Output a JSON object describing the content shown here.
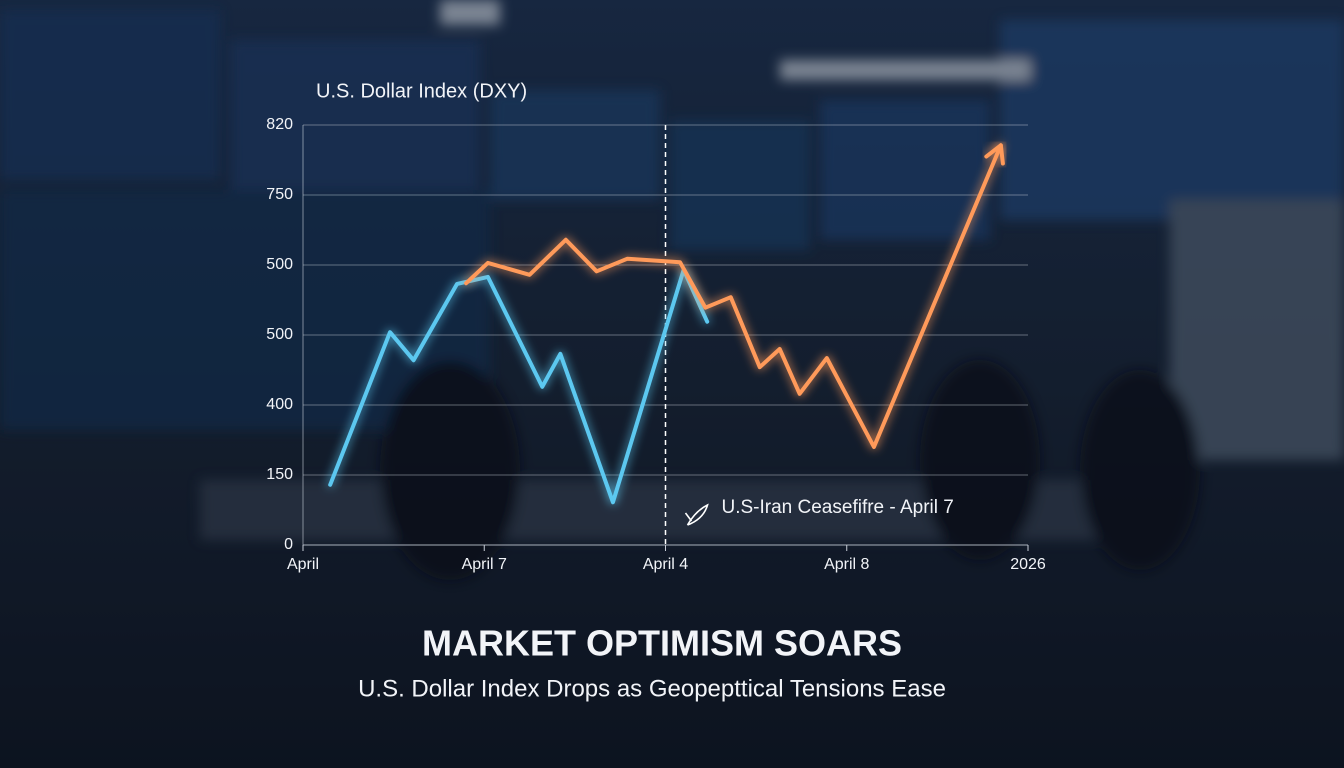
{
  "chart_data": {
    "type": "line",
    "title": "MARKET OPTIMISM SOARS",
    "subtitle": "U.S. Dollar Index Drops as Geopepttical Tensions Ease",
    "y_label": "U.S. Dollar Index (DXY)",
    "annotation": {
      "label": "U.S-Iran Ceasefifre - April 7",
      "x": 2
    },
    "xlim": [
      0,
      4
    ],
    "xticks": [
      {
        "value": 0,
        "label": "April"
      },
      {
        "value": 1,
        "label": "April 7"
      },
      {
        "value": 2,
        "label": "April 4"
      },
      {
        "value": 3,
        "label": "April 8"
      },
      {
        "value": 4,
        "label": "2026"
      }
    ],
    "ylim": [
      0,
      6
    ],
    "yticks": [
      {
        "value": 0,
        "label": "0"
      },
      {
        "value": 1,
        "label": "150"
      },
      {
        "value": 2,
        "label": "400"
      },
      {
        "value": 3,
        "label": "500"
      },
      {
        "value": 4,
        "label": "500"
      },
      {
        "value": 5,
        "label": "750"
      },
      {
        "value": 6,
        "label": "820"
      }
    ],
    "grid": true,
    "series": [
      {
        "color": "#5cc8f0",
        "x": [
          0.15,
          0.48,
          0.61,
          0.85,
          1.02,
          1.32,
          1.42,
          1.71,
          2.1,
          2.23
        ],
        "values": [
          0.86,
          3.04,
          2.64,
          3.73,
          3.83,
          2.26,
          2.73,
          0.61,
          3.93,
          3.19
        ]
      },
      {
        "color": "#ff9a5a",
        "x": [
          0.9,
          1.02,
          1.25,
          1.45,
          1.62,
          1.79,
          2.08,
          2.22,
          2.36,
          2.52,
          2.63,
          2.74,
          2.89,
          3.15,
          3.85
        ],
        "values": [
          3.74,
          4.03,
          3.86,
          4.36,
          3.91,
          4.09,
          4.04,
          3.39,
          3.54,
          2.54,
          2.8,
          2.16,
          2.67,
          1.4,
          5.71
        ]
      }
    ]
  }
}
